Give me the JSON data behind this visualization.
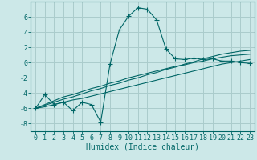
{
  "title": "",
  "xlabel": "Humidex (Indice chaleur)",
  "ylabel": "",
  "background_color": "#cce8e8",
  "grid_color": "#aacccc",
  "line_color": "#006666",
  "x_data": [
    0,
    1,
    2,
    3,
    4,
    5,
    6,
    7,
    8,
    9,
    10,
    11,
    12,
    13,
    14,
    15,
    16,
    17,
    18,
    19,
    20,
    21,
    22,
    23
  ],
  "y_main": [
    -6.0,
    -4.2,
    -5.5,
    -5.2,
    -6.3,
    -5.2,
    -5.5,
    -7.8,
    -0.2,
    4.3,
    6.1,
    7.2,
    7.0,
    5.6,
    1.8,
    0.5,
    0.4,
    0.6,
    0.4,
    0.5,
    0.2,
    0.2,
    0.0,
    -0.1
  ],
  "y_line1": [
    -6.0,
    -5.5,
    -5.0,
    -4.5,
    -4.2,
    -3.8,
    -3.4,
    -3.1,
    -2.7,
    -2.4,
    -2.0,
    -1.7,
    -1.4,
    -1.1,
    -0.8,
    -0.5,
    -0.3,
    0.0,
    0.2,
    0.5,
    0.7,
    0.9,
    1.0,
    1.1
  ],
  "y_line2": [
    -6.0,
    -5.8,
    -5.5,
    -5.2,
    -4.9,
    -4.7,
    -4.4,
    -4.1,
    -3.8,
    -3.5,
    -3.2,
    -2.9,
    -2.6,
    -2.3,
    -2.0,
    -1.7,
    -1.4,
    -1.1,
    -0.8,
    -0.5,
    -0.2,
    0.0,
    0.2,
    0.4
  ],
  "y_line3": [
    -6.0,
    -5.6,
    -5.2,
    -4.8,
    -4.5,
    -4.1,
    -3.7,
    -3.4,
    -3.0,
    -2.7,
    -2.3,
    -2.0,
    -1.6,
    -1.3,
    -0.9,
    -0.6,
    -0.2,
    0.1,
    0.5,
    0.8,
    1.1,
    1.3,
    1.5,
    1.6
  ],
  "ylim": [
    -9,
    8
  ],
  "yticks": [
    -8,
    -6,
    -4,
    -2,
    0,
    2,
    4,
    6
  ],
  "xticks": [
    0,
    1,
    2,
    3,
    4,
    5,
    6,
    7,
    8,
    9,
    10,
    11,
    12,
    13,
    14,
    15,
    16,
    17,
    18,
    19,
    20,
    21,
    22,
    23
  ],
  "xlabel_fontsize": 7,
  "tick_fontsize": 6
}
